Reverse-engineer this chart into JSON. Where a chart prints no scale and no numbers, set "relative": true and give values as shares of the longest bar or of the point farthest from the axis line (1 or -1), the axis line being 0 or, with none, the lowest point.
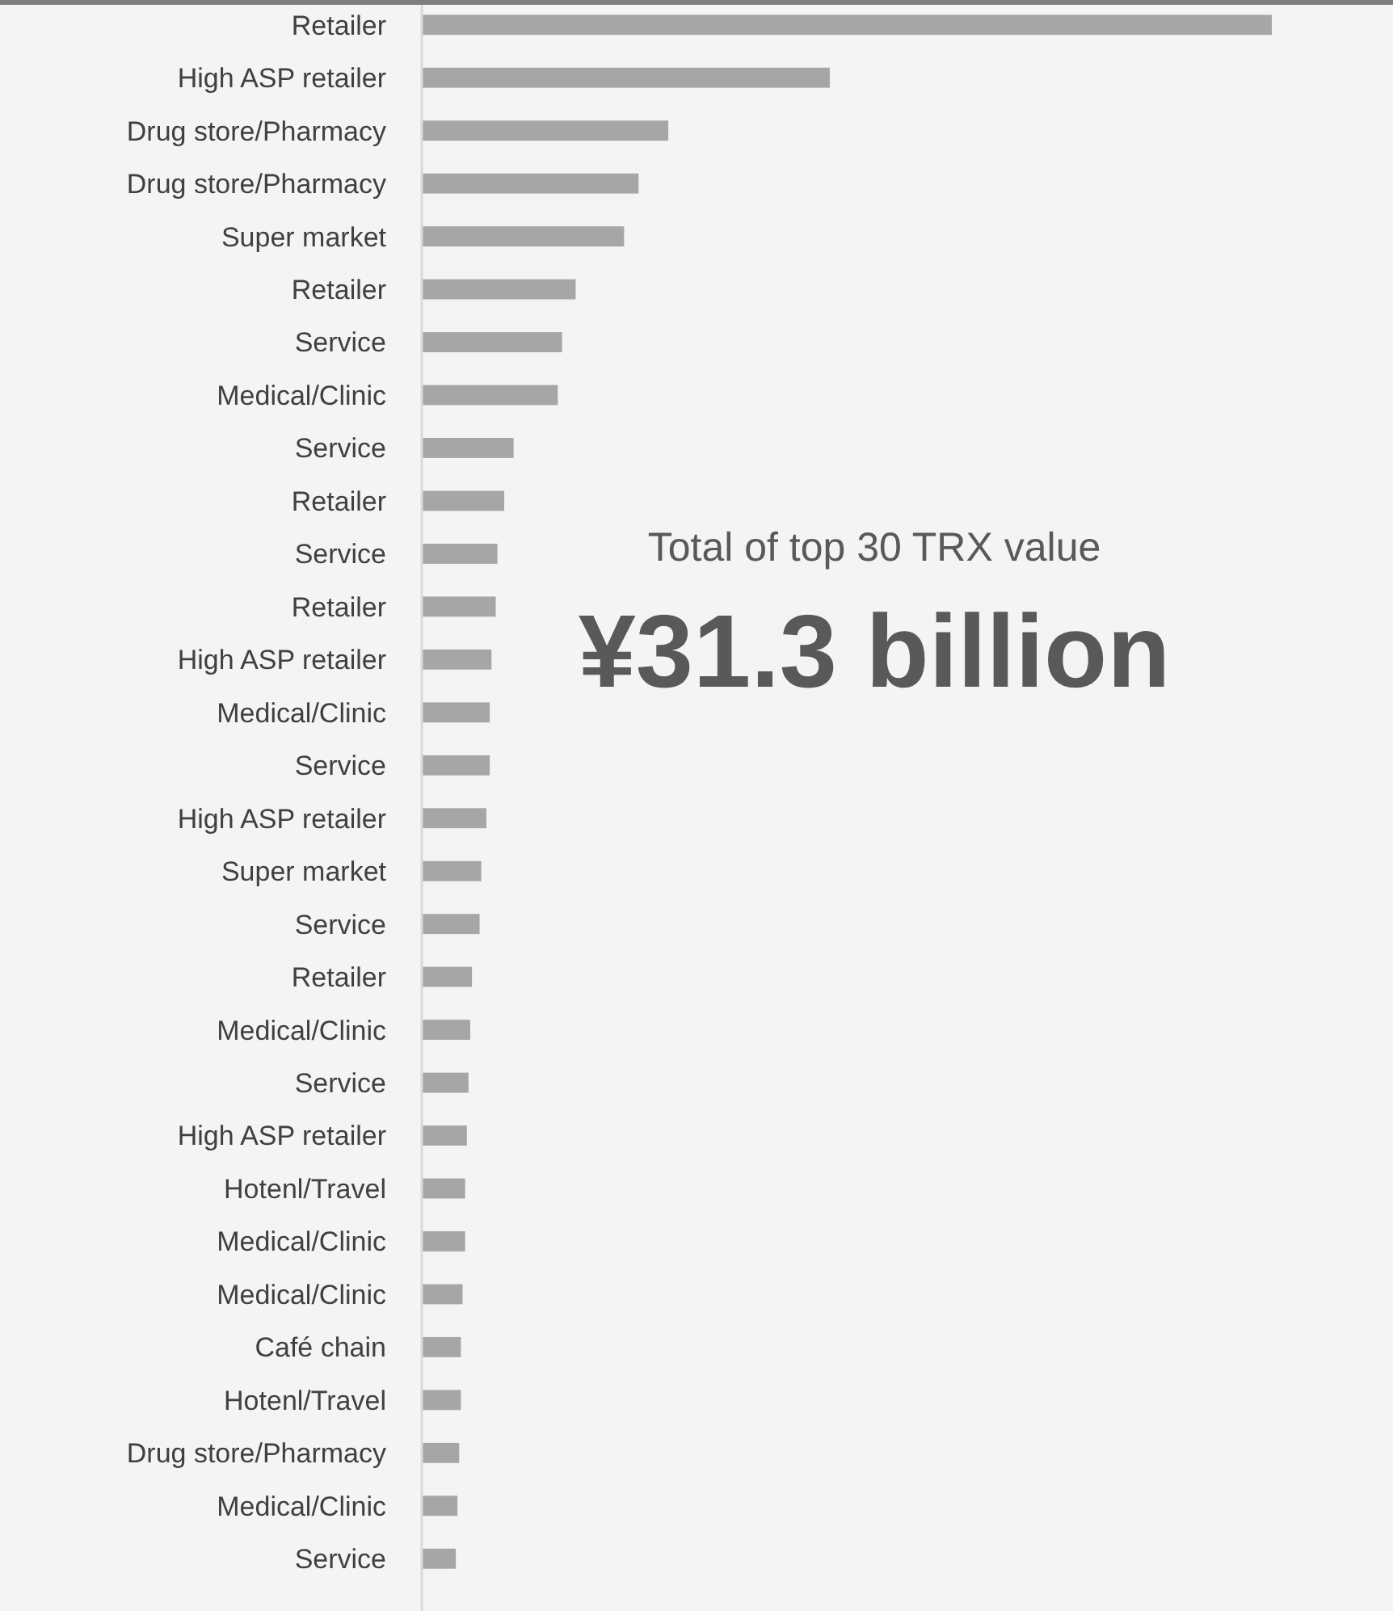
{
  "chart_data": {
    "type": "bar",
    "orientation": "horizontal",
    "relative": true,
    "categories": [
      "Retailer",
      "High ASP retailer",
      "Drug store/Pharmacy",
      "Drug store/Pharmacy",
      "Super market",
      "Retailer",
      "Service",
      "Medical/Clinic",
      "Service",
      "Retailer",
      "Service",
      "Retailer",
      "High ASP retailer",
      "Medical/Clinic",
      "Service",
      "High ASP retailer",
      "Super market",
      "Service",
      "Retailer",
      "Medical/Clinic",
      "Service",
      "High ASP retailer",
      "Hotenl/Travel",
      "Medical/Clinic",
      "Medical/Clinic",
      "Café chain",
      "Hotenl/Travel",
      "Drug store/Pharmacy",
      "Medical/Clinic",
      "Service"
    ],
    "values": [
      1,
      0.48,
      0.29,
      0.255,
      0.238,
      0.181,
      0.165,
      0.16,
      0.108,
      0.097,
      0.089,
      0.087,
      0.082,
      0.08,
      0.08,
      0.076,
      0.07,
      0.068,
      0.059,
      0.057,
      0.055,
      0.053,
      0.051,
      0.051,
      0.048,
      0.046,
      0.046,
      0.044,
      0.042,
      0.04
    ],
    "color": "#a6a6a6",
    "annotations": [
      "Total of top 30 TRX value",
      "¥31.3 billion"
    ]
  }
}
